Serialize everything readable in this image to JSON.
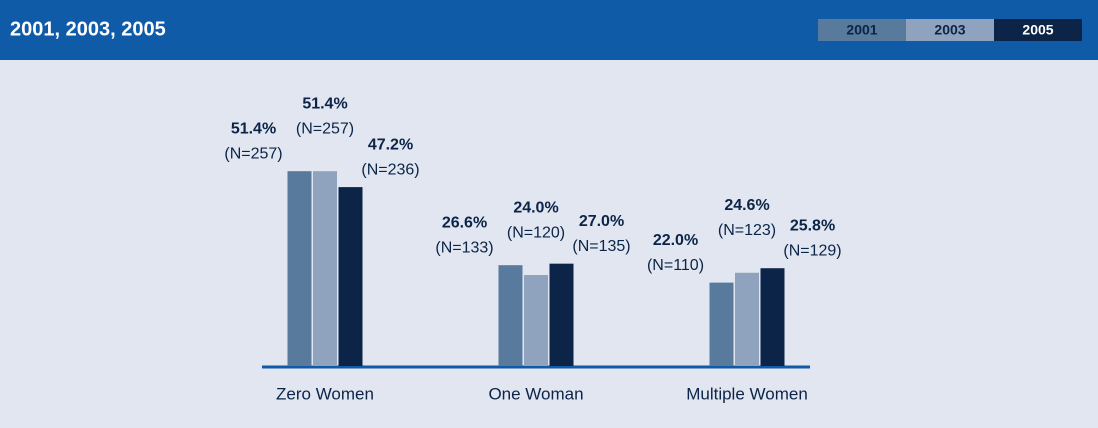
{
  "chart_data": {
    "type": "bar",
    "title": "2001, 2003, 2005",
    "categories": [
      "Zero Women",
      "One Woman",
      "Multiple Women"
    ],
    "series": [
      {
        "name": "2001",
        "color": "#587a9c",
        "text_color": "#0b2448",
        "values": [
          51.4,
          26.6,
          22.0
        ],
        "value_labels": [
          "51.4%",
          "26.6%",
          "22.0%"
        ],
        "n_labels": [
          "(N=257)",
          "(N=133)",
          "(N=110)"
        ]
      },
      {
        "name": "2003",
        "color": "#8fa3be",
        "text_color": "#0b2448",
        "values": [
          51.4,
          24.0,
          24.6
        ],
        "value_labels": [
          "51.4%",
          "24.0%",
          "24.6%"
        ],
        "n_labels": [
          "(N=257)",
          "(N=120)",
          "(N=123)"
        ]
      },
      {
        "name": "2005",
        "color": "#0b2448",
        "text_color": "#ffffff",
        "values": [
          47.2,
          27.0,
          25.8
        ],
        "value_labels": [
          "47.2%",
          "27.0%",
          "25.8%"
        ],
        "n_labels": [
          "(N=236)",
          "(N=135)",
          "(N=129)"
        ]
      }
    ]
  }
}
